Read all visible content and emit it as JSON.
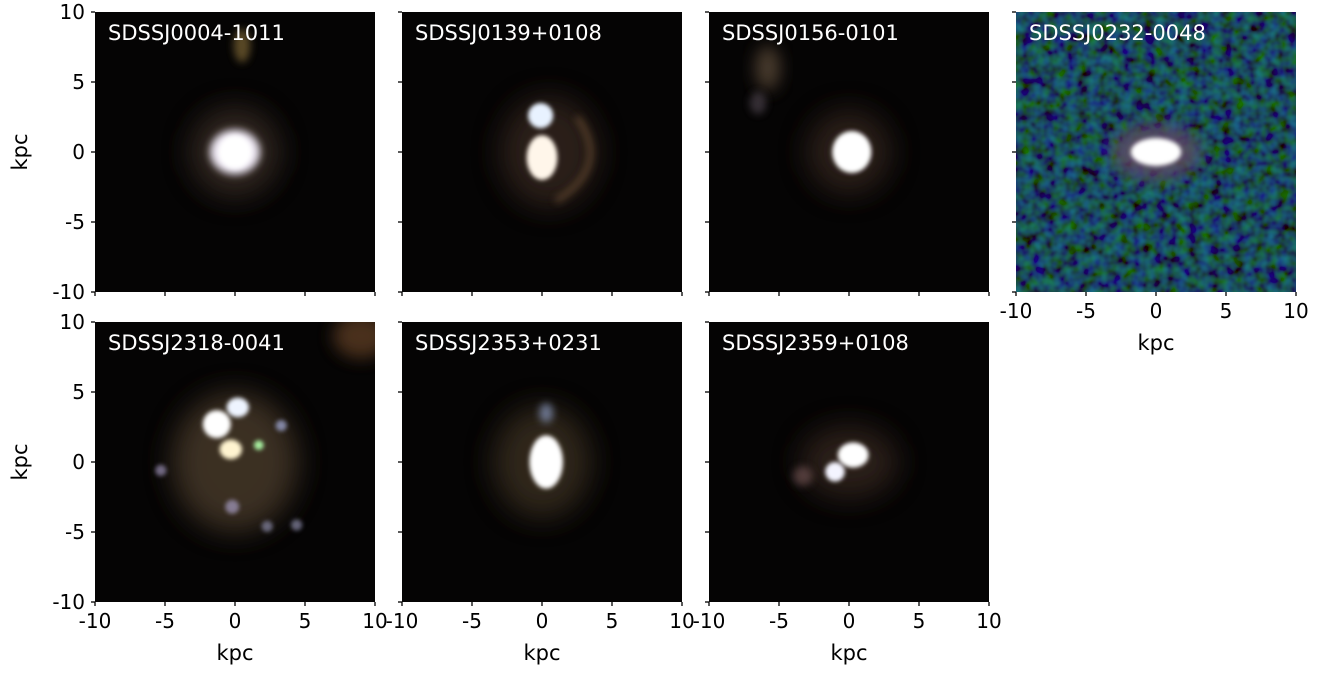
{
  "figure": {
    "axis_unit_label": "kpc",
    "ticks": [
      "-10",
      "-5",
      "0",
      "5",
      "10"
    ],
    "panels": [
      {
        "id": "p1",
        "title": "SDSSJ0004-1011",
        "show_y_ticks": true,
        "show_x_ticks": false
      },
      {
        "id": "p2",
        "title": "SDSSJ0139+0108",
        "show_y_ticks": false,
        "show_x_ticks": false
      },
      {
        "id": "p3",
        "title": "SDSSJ0156-0101",
        "show_y_ticks": false,
        "show_x_ticks": false
      },
      {
        "id": "p4",
        "title": "SDSSJ0232-0048",
        "show_y_ticks": false,
        "show_x_ticks": true
      },
      {
        "id": "p5",
        "title": "SDSSJ2318-0041",
        "show_y_ticks": true,
        "show_x_ticks": true
      },
      {
        "id": "p6",
        "title": "SDSSJ2353+0231",
        "show_y_ticks": false,
        "show_x_ticks": true
      },
      {
        "id": "p7",
        "title": "SDSSJ2359+0108",
        "show_y_ticks": false,
        "show_x_ticks": true
      }
    ]
  }
}
